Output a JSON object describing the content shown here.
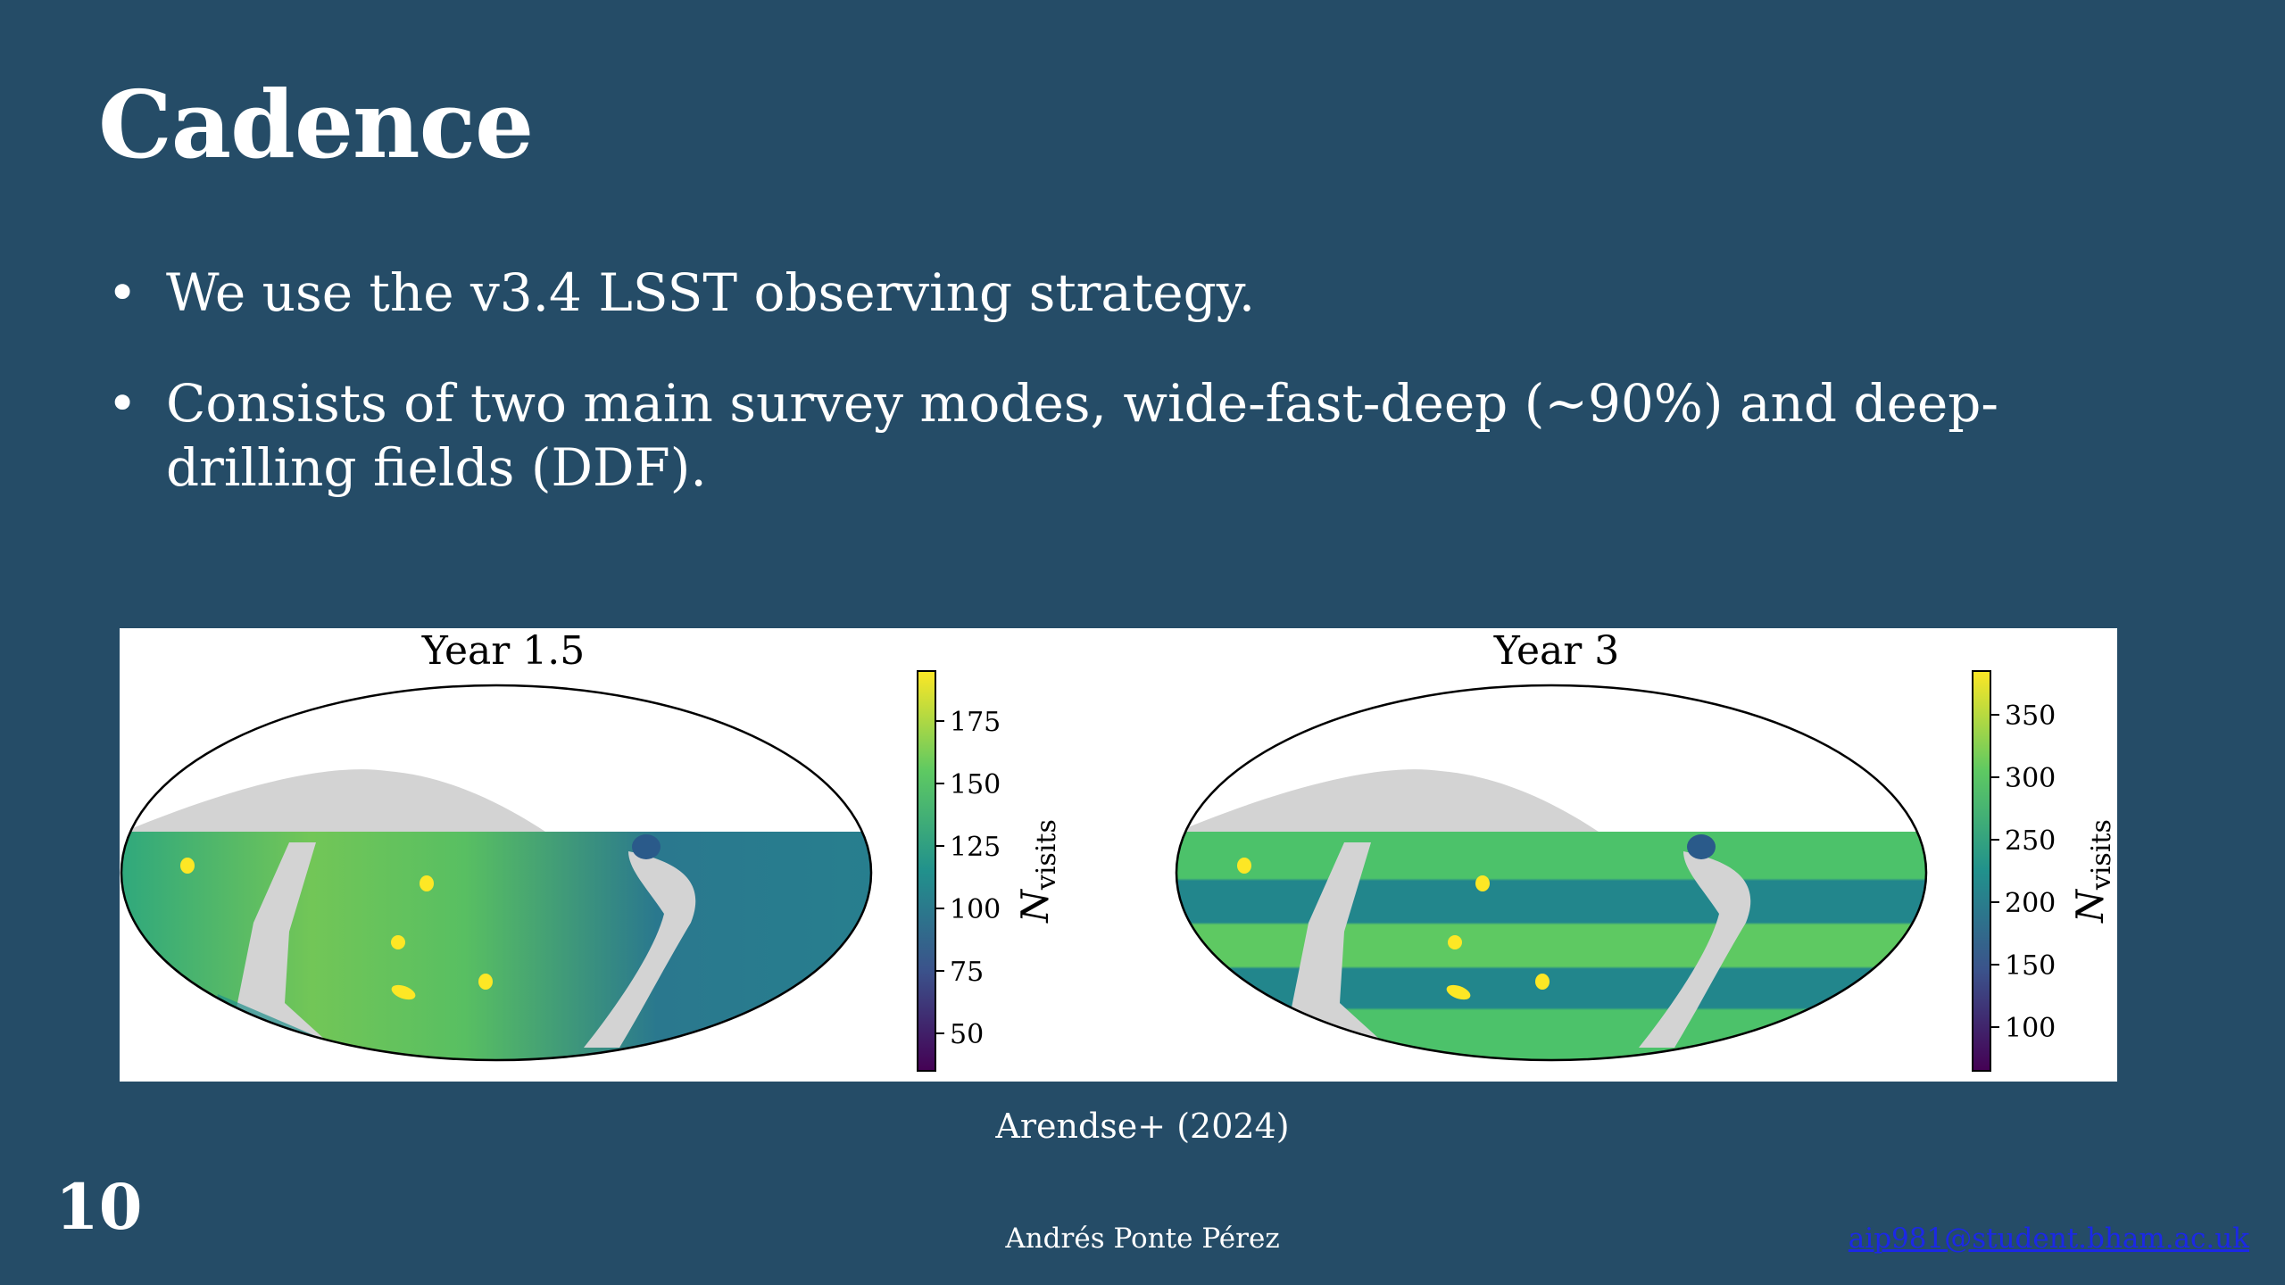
{
  "slide": {
    "title": "Cadence",
    "bullets": [
      "We use the v3.4 LSST observing strategy.",
      "Consists of two main survey modes, wide-fast-deep (~90%) and deep-drilling fields (DDF)."
    ],
    "caption": "Arendse+ (2024)",
    "slide_number": "10",
    "author": "Andrés Ponte Pérez",
    "email": "aip981@student.bham.ac.uk"
  },
  "figure": {
    "panels": [
      {
        "title": "Year 1.5",
        "colorbar_label": "N",
        "colorbar_label_sub": "visits",
        "ticks": [
          "50",
          "75",
          "100",
          "125",
          "150",
          "175"
        ],
        "range": [
          35,
          195
        ]
      },
      {
        "title": "Year 3",
        "colorbar_label": "N",
        "colorbar_label_sub": "visits",
        "ticks": [
          "100",
          "150",
          "200",
          "250",
          "300",
          "350"
        ],
        "range": [
          65,
          385
        ]
      }
    ],
    "colors": {
      "viridis_low": "#440154",
      "viridis_mid": "#21918c",
      "viridis_high": "#fde725",
      "unobserved": "#d3d3d3",
      "ddf": "#fde725"
    }
  }
}
